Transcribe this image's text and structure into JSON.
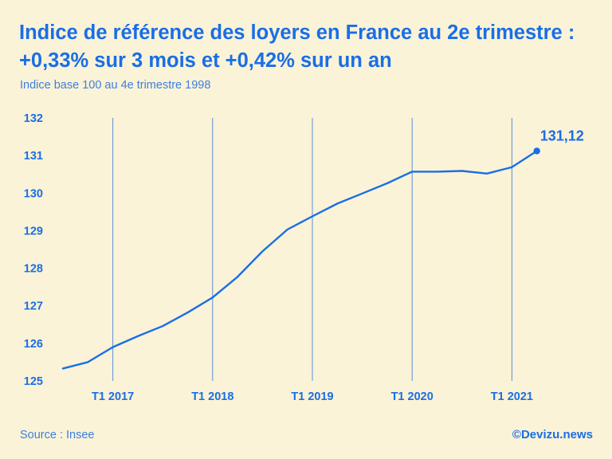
{
  "chart_data": {
    "type": "line",
    "title": "Indice de référence des loyers en France au 2e trimestre : +0,33% sur 3 mois et +0,42% sur un an",
    "subtitle": "Indice base 100 au 4e trimestre 1998",
    "xlabel": "",
    "ylabel": "",
    "ylim": [
      125,
      132
    ],
    "y_ticks": [
      "125",
      "126",
      "127",
      "128",
      "129",
      "130",
      "131",
      "132"
    ],
    "x_ticks": [
      {
        "label": "T1 2017",
        "x": "2017-T1"
      },
      {
        "label": "T1 2018",
        "x": "2018-T1"
      },
      {
        "label": "T1 2019",
        "x": "2019-T1"
      },
      {
        "label": "T1 2020",
        "x": "2020-T1"
      },
      {
        "label": "T1 2021",
        "x": "2021-T1"
      }
    ],
    "x": [
      "2016-T3",
      "2016-T4",
      "2017-T1",
      "2017-T2",
      "2017-T3",
      "2017-T4",
      "2018-T1",
      "2018-T2",
      "2018-T3",
      "2018-T4",
      "2019-T1",
      "2019-T2",
      "2019-T3",
      "2019-T4",
      "2020-T1",
      "2020-T2",
      "2020-T3",
      "2020-T4",
      "2021-T1",
      "2021-T2"
    ],
    "series": [
      {
        "values": [
          125.33,
          125.5,
          125.9,
          126.19,
          126.46,
          126.82,
          127.22,
          127.77,
          128.45,
          129.03,
          129.38,
          129.72,
          129.99,
          130.26,
          130.57,
          130.57,
          130.59,
          130.52,
          130.69,
          131.12
        ]
      }
    ],
    "end_label": "131,12",
    "vertical_grid": true,
    "horizontal_grid": false,
    "legend": "none"
  },
  "footer": {
    "source": "Source : Insee",
    "credit": "©Devizu.news"
  },
  "colors": {
    "background": "#faf3d7",
    "accent": "#1a6ee6",
    "grid": "#5a8fd8"
  }
}
